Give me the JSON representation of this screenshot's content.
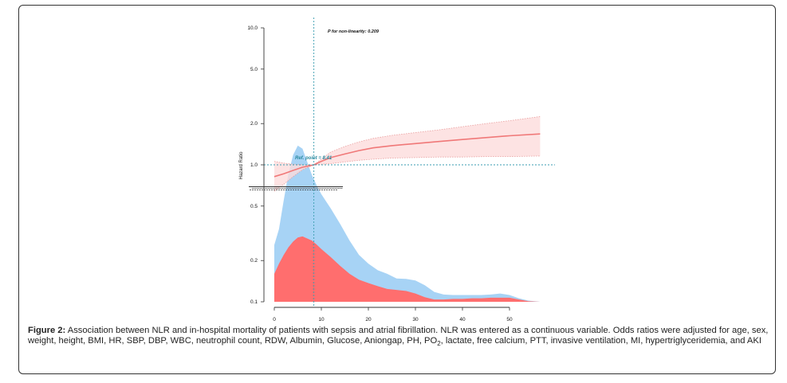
{
  "chart_data": {
    "type": "line",
    "annotation": "P for non-linearity: 0.209",
    "ref_label": "Ref. point = 8.41",
    "ref_x": 8.41,
    "ref_y": 1.0,
    "ylabel": "Hazard Ratio",
    "y_scale": "log",
    "y_ticks": [
      {
        "v": 0.1,
        "label": "0.1"
      },
      {
        "v": 0.2,
        "label": "0.2"
      },
      {
        "v": 0.5,
        "label": "0.5"
      },
      {
        "v": 1.0,
        "label": "1.0"
      },
      {
        "v": 2.0,
        "label": "2.0"
      },
      {
        "v": 5.0,
        "label": "5.0"
      },
      {
        "v": 10.0,
        "label": "10.0"
      }
    ],
    "x_ticks": [
      {
        "v": 0,
        "label": "0"
      },
      {
        "v": 10,
        "label": "10"
      },
      {
        "v": 20,
        "label": "20"
      },
      {
        "v": 30,
        "label": "30"
      },
      {
        "v": 40,
        "label": "40"
      },
      {
        "v": 50,
        "label": "50"
      }
    ],
    "xlim": [
      -3,
      60
    ],
    "ylim": [
      0.085,
      11
    ],
    "hr_curve": {
      "x": [
        0,
        2,
        4,
        6,
        8.41,
        10,
        12,
        15,
        18,
        21,
        25,
        30,
        35,
        40,
        45,
        50,
        56.5
      ],
      "y": [
        0.82,
        0.86,
        0.91,
        0.96,
        1.0,
        1.06,
        1.13,
        1.2,
        1.27,
        1.33,
        1.38,
        1.43,
        1.48,
        1.53,
        1.58,
        1.63,
        1.68
      ]
    },
    "hr_ci": {
      "x": [
        0,
        2,
        4,
        6,
        8.41,
        10,
        12,
        15,
        18,
        21,
        25,
        30,
        35,
        40,
        45,
        50,
        56.5
      ],
      "lower": [
        0.64,
        0.72,
        0.82,
        0.92,
        1.0,
        1.01,
        1.02,
        1.05,
        1.08,
        1.1,
        1.12,
        1.13,
        1.14,
        1.14,
        1.15,
        1.15,
        1.16
      ],
      "upper": [
        1.06,
        1.03,
        1.01,
        1.0,
        1.0,
        1.1,
        1.24,
        1.36,
        1.47,
        1.56,
        1.64,
        1.72,
        1.8,
        1.9,
        2.0,
        2.1,
        2.25
      ]
    },
    "density_total": {
      "x": [
        0,
        1,
        2,
        3,
        4,
        5,
        6,
        7,
        8,
        9,
        10,
        12,
        14,
        16,
        18,
        20,
        22,
        24,
        26,
        28,
        30,
        32,
        34,
        36,
        38,
        40,
        42,
        44,
        46,
        48,
        50,
        52,
        54,
        56.5
      ],
      "y": [
        0.26,
        0.34,
        0.55,
        0.86,
        1.18,
        1.38,
        1.31,
        1.05,
        0.84,
        0.71,
        0.61,
        0.48,
        0.37,
        0.28,
        0.22,
        0.19,
        0.17,
        0.16,
        0.148,
        0.147,
        0.143,
        0.132,
        0.118,
        0.113,
        0.112,
        0.112,
        0.112,
        0.112,
        0.113,
        0.115,
        0.112,
        0.106,
        0.102,
        0.1
      ]
    },
    "density_dead": {
      "x": [
        0,
        1,
        2,
        3,
        4,
        5,
        6,
        7,
        8,
        9,
        10,
        12,
        14,
        16,
        18,
        20,
        22,
        24,
        26,
        28,
        30,
        32,
        34,
        36,
        38,
        40,
        42,
        44,
        46,
        48,
        50,
        52,
        54,
        56.5
      ],
      "y": [
        0.16,
        0.19,
        0.22,
        0.25,
        0.275,
        0.295,
        0.3,
        0.29,
        0.28,
        0.262,
        0.243,
        0.212,
        0.183,
        0.16,
        0.145,
        0.137,
        0.13,
        0.124,
        0.122,
        0.12,
        0.115,
        0.108,
        0.104,
        0.104,
        0.105,
        0.105,
        0.106,
        0.106,
        0.107,
        0.107,
        0.107,
        0.104,
        0.101,
        0.1
      ]
    },
    "colors": {
      "density_total": "#a7d3f5",
      "density_dead": "#ff6e6e",
      "hr_line": "#f07878",
      "ci_band": "#fcdcdc",
      "ci_border": "#e99d9d",
      "ref_line": "#3a9db0",
      "ref_text": "#2a8aa0",
      "axis": "#333333"
    }
  },
  "caption": {
    "label": "Figure 2:",
    "text_before_sub": " Association between NLR and in-hospital mortality of patients with sepsis and atrial fibrillation. NLR was entered as a continuous variable. Odds ratios were adjusted for age, sex, weight, height, BMI, HR, SBP, DBP, WBC, neutrophil count, RDW, Albumin, Glucose, Aniongap, PH, PO",
    "sub": "2",
    "text_after_sub": ", lactate, free calcium, PTT, invasive ventilation, MI, hypertriglyceridemia, and AKI"
  }
}
